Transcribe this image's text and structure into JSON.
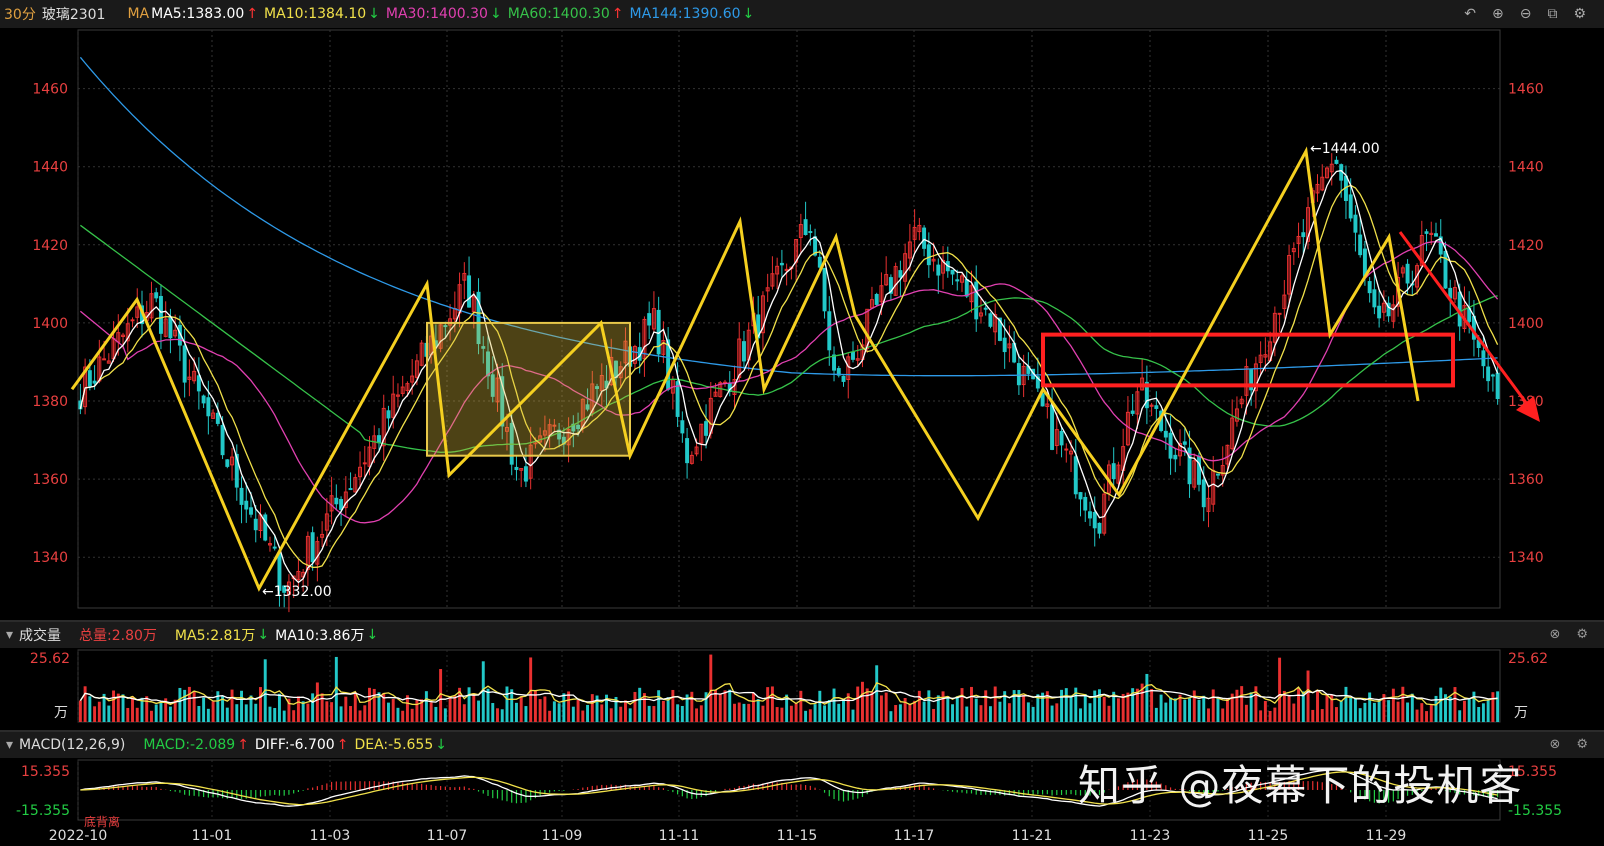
{
  "header": {
    "period": "30分",
    "symbol": "玻璃2301",
    "ma_label": "MA",
    "ma_items": [
      {
        "label": "MA5:1383.00",
        "arrow": "↑",
        "color": "#ffffff",
        "arrow_color": "#ff3333"
      },
      {
        "label": "MA10:1384.10",
        "arrow": "↓",
        "color": "#f0e04a",
        "arrow_color": "#22cc44"
      },
      {
        "label": "MA30:1400.30",
        "arrow": "↓",
        "color": "#e040b0",
        "arrow_color": "#22cc44"
      },
      {
        "label": "MA60:1400.30",
        "arrow": "↑",
        "color": "#36c24a",
        "arrow_color": "#ff3333"
      },
      {
        "label": "MA144:1390.60",
        "arrow": "↓",
        "color": "#2e9ae8",
        "arrow_color": "#22cc44"
      }
    ]
  },
  "volume_header": {
    "title": "成交量",
    "total": "总量:2.80万",
    "ma5": "MA5:2.81万",
    "ma5_arrow": "↓",
    "ma10": "MA10:3.86万",
    "ma10_arrow": "↓"
  },
  "macd_header": {
    "title": "MACD(12,26,9)",
    "macd": "MACD:-2.089",
    "macd_arrow": "↑",
    "diff": "DIFF:-6.700",
    "diff_arrow": "↑",
    "dea": "DEA:-5.655",
    "dea_arrow": "↓"
  },
  "toolbar_icons": [
    "undo-icon",
    "zoom-in-icon",
    "zoom-out-icon",
    "window-icon",
    "settings-icon"
  ],
  "annotations": {
    "high": "1444.00",
    "low": "1332.00",
    "divergence": "底背离"
  },
  "watermark": "知乎 @夜幕下的投机客",
  "colors": {
    "up": "#e83030",
    "down": "#22c8c8",
    "zigzag": "#f5d020",
    "box_red": "#ff2020",
    "axis_red": "#e84040"
  },
  "chart_data": [
    {
      "type": "candlestick",
      "title": "玻璃2301 30分",
      "x_ticks": [
        "2022-10",
        "11-01",
        "11-03",
        "11-07",
        "11-09",
        "11-11",
        "11-15",
        "11-17",
        "11-21",
        "11-23",
        "11-25",
        "11-29"
      ],
      "y_ticks": [
        1340,
        1360,
        1380,
        1400,
        1420,
        1440,
        1460
      ],
      "ylim": [
        1327,
        1475
      ],
      "zigzag": [
        1383,
        1406,
        1332,
        1410,
        1361,
        1400,
        1366,
        1426,
        1383,
        1422,
        1402,
        1350,
        1383,
        1356,
        1444,
        1397,
        1422,
        1380
      ],
      "yellow_box": {
        "x_from": "11-07",
        "x_to": "11-09",
        "y_range": [
          1366,
          1400
        ]
      },
      "red_box": {
        "x_from": "11-21",
        "x_to": "11-29",
        "y_range": [
          1384,
          1397
        ]
      },
      "ma_lines": [
        "MA5",
        "MA10",
        "MA30",
        "MA60",
        "MA144"
      ]
    },
    {
      "type": "bar",
      "title": "成交量",
      "y_ticks": [
        "25.62"
      ],
      "unit": "万"
    },
    {
      "type": "bar",
      "title": "MACD(12,26,9)",
      "y_ticks": [
        "15.355",
        "-15.355"
      ]
    }
  ]
}
